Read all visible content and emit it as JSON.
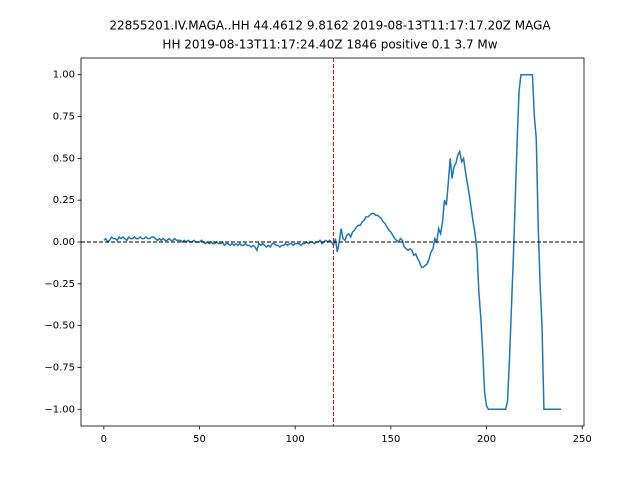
{
  "chart_data": {
    "type": "line",
    "title": [
      "22855201.IV.MAGA..HH 44.4612 9.8162 2019-08-13T11:17:17.20Z MAGA",
      "HH 2019-08-13T11:17:24.40Z 1846 positive 0.1 3.7 Mw"
    ],
    "x": [
      0,
      1,
      2,
      3,
      4,
      5,
      6,
      7,
      8,
      9,
      10,
      11,
      12,
      13,
      14,
      15,
      16,
      17,
      18,
      19,
      20,
      21,
      22,
      23,
      24,
      25,
      26,
      27,
      28,
      29,
      30,
      31,
      32,
      33,
      34,
      35,
      36,
      37,
      38,
      39,
      40,
      41,
      42,
      43,
      44,
      45,
      46,
      47,
      48,
      49,
      50,
      51,
      52,
      53,
      54,
      55,
      56,
      57,
      58,
      59,
      60,
      61,
      62,
      63,
      64,
      65,
      66,
      67,
      68,
      69,
      70,
      71,
      72,
      73,
      74,
      75,
      76,
      77,
      78,
      79,
      80,
      81,
      82,
      83,
      84,
      85,
      86,
      87,
      88,
      89,
      90,
      91,
      92,
      93,
      94,
      95,
      96,
      97,
      98,
      99,
      100,
      101,
      102,
      103,
      104,
      105,
      106,
      107,
      108,
      109,
      110,
      111,
      112,
      113,
      114,
      115,
      116,
      117,
      118,
      119,
      120,
      121,
      122,
      123,
      124,
      125,
      126,
      127,
      128,
      129,
      130,
      131,
      132,
      133,
      134,
      135,
      136,
      137,
      138,
      139,
      140,
      141,
      142,
      143,
      144,
      145,
      146,
      147,
      148,
      149,
      150,
      151,
      152,
      153,
      154,
      155,
      156,
      157,
      158,
      159,
      160,
      161,
      162,
      163,
      164,
      165,
      166,
      167,
      168,
      169,
      170,
      171,
      172,
      173,
      174,
      175,
      176,
      177,
      178,
      179,
      180,
      181,
      182,
      183,
      184,
      185,
      186,
      187,
      188,
      189,
      190,
      191,
      192,
      193,
      194,
      195,
      196,
      197,
      198,
      199,
      200,
      201,
      202,
      203,
      204,
      205,
      206,
      207,
      208,
      209,
      210,
      211,
      212,
      213,
      214,
      215,
      216,
      217,
      218,
      219,
      220,
      221,
      222,
      223,
      224,
      225,
      226,
      227,
      228,
      229,
      230,
      231,
      232,
      233,
      234,
      235,
      236,
      237,
      238,
      239
    ],
    "series": [
      {
        "color": "#1f77b4",
        "values": [
          0.01,
          0.02,
          0.0,
          0.01,
          0.03,
          0.02,
          0.02,
          0.01,
          0.03,
          0.02,
          0.03,
          0.02,
          0.01,
          0.03,
          0.02,
          0.02,
          0.03,
          0.02,
          0.02,
          0.03,
          0.02,
          0.02,
          0.03,
          0.02,
          0.02,
          0.03,
          0.03,
          0.02,
          0.01,
          0.02,
          0.01,
          0.02,
          0.01,
          0.01,
          0.02,
          0.01,
          0.01,
          0.02,
          0.01,
          0.01,
          0.01,
          0.0,
          0.01,
          0.0,
          0.01,
          0.0,
          0.0,
          0.01,
          0.0,
          0.0,
          0.0,
          0.01,
          0.0,
          -0.01,
          0.0,
          -0.01,
          0.0,
          -0.01,
          -0.01,
          0.0,
          -0.01,
          -0.01,
          0.0,
          -0.02,
          -0.01,
          -0.01,
          -0.02,
          -0.01,
          -0.02,
          -0.01,
          -0.02,
          -0.01,
          -0.02,
          -0.02,
          -0.01,
          -0.02,
          -0.02,
          -0.03,
          -0.02,
          -0.03,
          -0.05,
          -0.01,
          -0.02,
          -0.01,
          -0.02,
          -0.03,
          -0.02,
          -0.03,
          -0.01,
          -0.01,
          -0.02,
          -0.02,
          -0.03,
          -0.02,
          -0.02,
          -0.01,
          -0.02,
          -0.01,
          -0.01,
          -0.02,
          -0.01,
          -0.01,
          -0.01,
          -0.02,
          -0.01,
          -0.01,
          0.0,
          -0.01,
          0.0,
          0.0,
          -0.01,
          0.0,
          0.0,
          0.01,
          -0.01,
          0.0,
          0.01,
          0.0,
          0.01,
          0.0,
          -0.02,
          0.02,
          -0.06,
          0.0,
          0.08,
          0.02,
          0.01,
          0.04,
          0.05,
          0.03,
          0.06,
          0.07,
          0.09,
          0.1,
          0.1,
          0.12,
          0.13,
          0.15,
          0.15,
          0.16,
          0.17,
          0.17,
          0.16,
          0.16,
          0.15,
          0.14,
          0.12,
          0.11,
          0.09,
          0.07,
          0.06,
          0.04,
          0.02,
          0.01,
          0.0,
          0.02,
          0.01,
          -0.03,
          -0.04,
          -0.05,
          -0.04,
          -0.05,
          -0.08,
          -0.07,
          -0.1,
          -0.12,
          -0.15,
          -0.15,
          -0.14,
          -0.13,
          -0.1,
          -0.06,
          -0.04,
          0.02,
          0.0,
          0.08,
          0.05,
          0.12,
          0.25,
          0.22,
          0.35,
          0.5,
          0.38,
          0.45,
          0.47,
          0.52,
          0.54,
          0.48,
          0.5,
          0.42,
          0.35,
          0.28,
          0.2,
          0.12,
          0.05,
          -0.05,
          -0.3,
          -0.45,
          -0.65,
          -0.9,
          -0.98,
          -1.0,
          -1.0,
          -1.0,
          -1.0,
          -1.0,
          -1.0,
          -1.0,
          -1.0,
          -1.0,
          -1.0,
          -0.95,
          -0.7,
          -0.4,
          -0.1,
          0.25,
          0.6,
          0.9,
          1.0,
          1.0,
          1.0,
          1.0,
          1.0,
          1.0,
          1.0,
          0.75,
          0.62,
          0.1,
          -0.25,
          -0.5,
          -1.0,
          -1.0,
          -1.0,
          -1.0,
          -1.0,
          -1.0,
          -1.0,
          -1.0,
          -1.0,
          -1.0
        ]
      }
    ],
    "hlines": [
      {
        "value": 0,
        "color": "#000000"
      }
    ],
    "vlines": [
      {
        "value": 120,
        "color": "#ff0000"
      }
    ],
    "xlim": [
      -11.95,
      250.95
    ],
    "xticks": [
      0,
      50,
      100,
      150,
      200,
      250
    ],
    "ylim": [
      -1.1,
      1.1
    ],
    "yticks": [
      {
        "value": -1,
        "label": "−1.00"
      },
      {
        "value": -0.75,
        "label": "−0.75"
      },
      {
        "value": -0.5,
        "label": "−0.50"
      },
      {
        "value": -0.25,
        "label": "−0.25"
      },
      {
        "value": 0,
        "label": "0.00"
      },
      {
        "value": 0.25,
        "label": "0.25"
      },
      {
        "value": 0.5,
        "label": "0.50"
      },
      {
        "value": 0.75,
        "label": "0.75"
      },
      {
        "value": 1,
        "label": "1.00"
      }
    ]
  }
}
